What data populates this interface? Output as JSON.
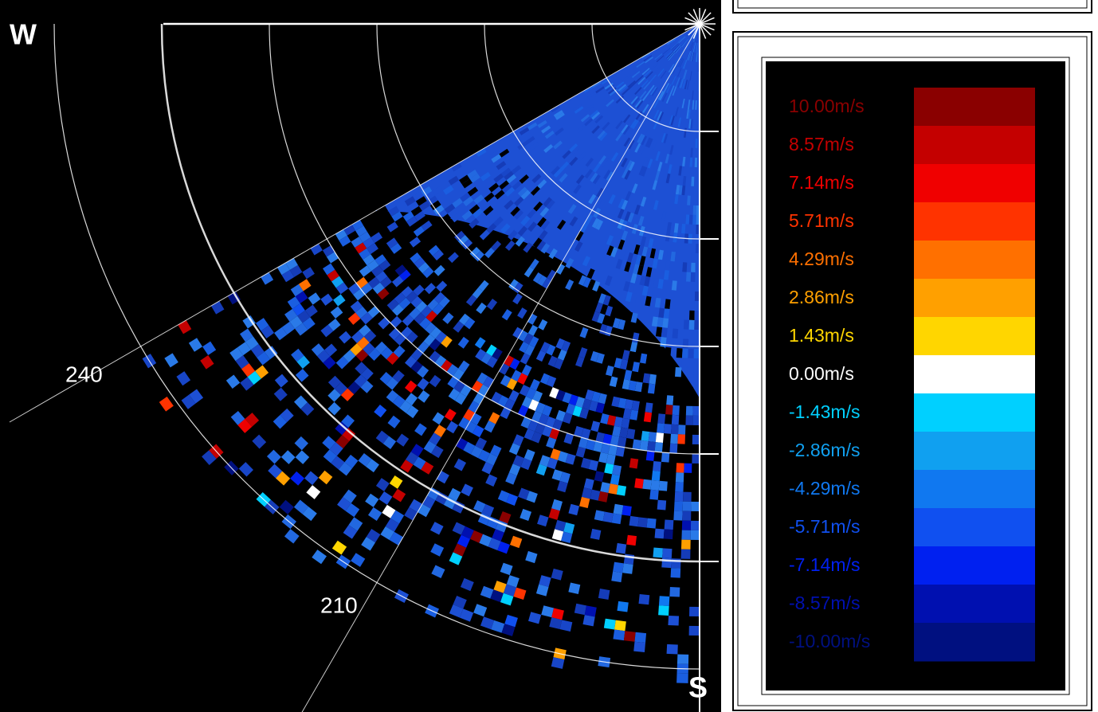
{
  "radar": {
    "compass": {
      "west": "W",
      "south": "S"
    },
    "azimuth_labels": [
      "240",
      "210"
    ]
  },
  "legend": {
    "entries": [
      {
        "label": "10.00m/s",
        "color": "#8a0000"
      },
      {
        "label": "8.57m/s",
        "color": "#c40000"
      },
      {
        "label": "7.14m/s",
        "color": "#f00000"
      },
      {
        "label": "5.71m/s",
        "color": "#ff3300"
      },
      {
        "label": "4.29m/s",
        "color": "#ff7000"
      },
      {
        "label": "2.86m/s",
        "color": "#ffa000"
      },
      {
        "label": "1.43m/s",
        "color": "#ffd600"
      },
      {
        "label": "0.00m/s",
        "color": "#ffffff"
      },
      {
        "label": "-1.43m/s",
        "color": "#00d0ff"
      },
      {
        "label": "-2.86m/s",
        "color": "#10a0f0"
      },
      {
        "label": "-4.29m/s",
        "color": "#1078f0"
      },
      {
        "label": "-5.71m/s",
        "color": "#1050f0"
      },
      {
        "label": "-7.14m/s",
        "color": "#0020f0"
      },
      {
        "label": "-8.57m/s",
        "color": "#0010b0"
      },
      {
        "label": "-10.00m/s",
        "color": "#001080"
      }
    ]
  }
}
